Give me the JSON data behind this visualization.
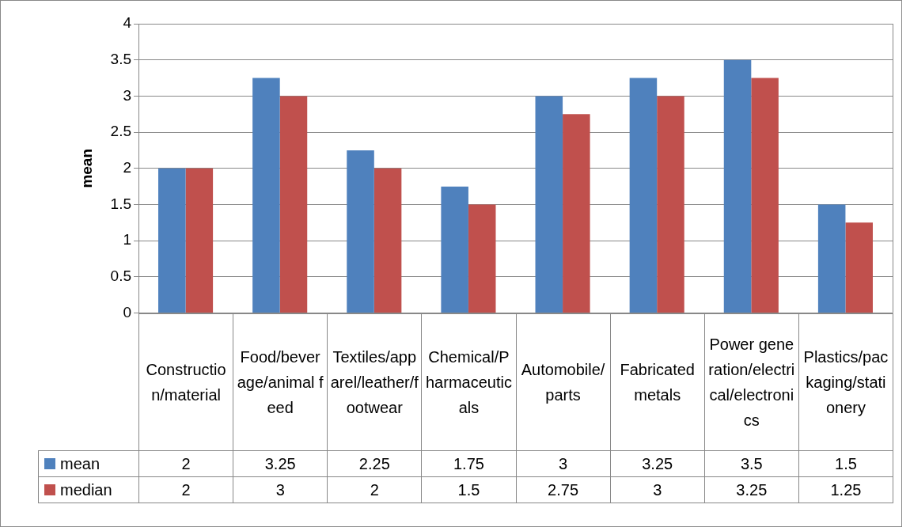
{
  "chart_data": {
    "type": "bar",
    "ylabel": "mean",
    "categories": [
      "Construction/material",
      "Food/beverage/animal feed",
      "Textiles/apparel/leather/footwear",
      "Chemical/Pharmaceuticals",
      "Automobile/parts",
      "Fabricated metals",
      "Power generation/electrical/electronics",
      "Plastics/packaging/stationery"
    ],
    "series": [
      {
        "name": "mean",
        "color": "#4f81bd",
        "values": [
          2,
          3.25,
          2.25,
          1.75,
          3,
          3.25,
          3.5,
          1.5
        ]
      },
      {
        "name": "median",
        "color": "#c0504d",
        "values": [
          2,
          3,
          2,
          1.5,
          2.75,
          3,
          3.25,
          1.25
        ]
      }
    ],
    "ylim": [
      0,
      4
    ],
    "yticks": [
      0,
      0.5,
      1,
      1.5,
      2,
      2.5,
      3,
      3.5,
      4
    ],
    "grid": "y",
    "legend": "bottom",
    "data_labels": true
  }
}
